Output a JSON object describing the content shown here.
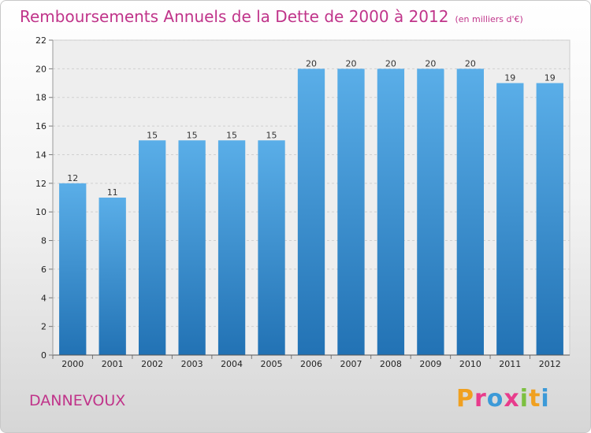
{
  "header": {
    "title": "Remboursements Annuels de la Dette de 2000 à 2012",
    "unit": "(en milliers d'€)"
  },
  "footer": {
    "city": "DANNEVOUX",
    "logo": [
      "P",
      "r",
      "o",
      "x",
      "i",
      "t",
      "i"
    ]
  },
  "colors": {
    "title": "#c0348a",
    "bar_top": "#5aaee8",
    "bar_bottom": "#2272b4",
    "logo": [
      "#f0a020",
      "#e83c8c",
      "#3c9ad8",
      "#e83c8c",
      "#7cc040",
      "#f0a020",
      "#3c9ad8"
    ]
  },
  "chart_data": {
    "type": "bar",
    "title": "Remboursements Annuels de la Dette de 2000 à 2012",
    "subtitle": "(en milliers d'€)",
    "xlabel": "",
    "ylabel": "",
    "categories": [
      "2000",
      "2001",
      "2002",
      "2003",
      "2004",
      "2005",
      "2006",
      "2007",
      "2008",
      "2009",
      "2010",
      "2011",
      "2012"
    ],
    "values": [
      12,
      11,
      15,
      15,
      15,
      15,
      20,
      20,
      20,
      20,
      20,
      19,
      19
    ],
    "ylim": [
      0,
      22
    ],
    "yticks": [
      0,
      2,
      4,
      6,
      8,
      10,
      12,
      14,
      16,
      18,
      20,
      22
    ],
    "grid": true
  }
}
